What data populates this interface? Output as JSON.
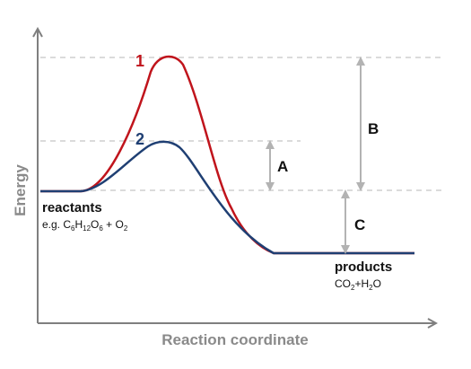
{
  "axes": {
    "y_label": "Energy",
    "x_label": "Reaction coordinate"
  },
  "curves": [
    {
      "label": "1",
      "color": "#c0141c"
    },
    {
      "label": "2",
      "color": "#1f3f73"
    }
  ],
  "gaps": {
    "a": "A",
    "b": "B",
    "c": "C"
  },
  "reactants": {
    "title": "reactants",
    "formula_prefix": "e.g. C",
    "c_sub": "6",
    "h": "H",
    "h_sub": "12",
    "o": "O",
    "o_sub": "6",
    "plus": " + O",
    "o2_sub": "2"
  },
  "products": {
    "title": "products",
    "formula_prefix": "CO",
    "co2_sub": "2",
    "plus_h": "+H",
    "h2_sub": "2",
    "o": "O"
  },
  "colors": {
    "axis": "#7f7f7f",
    "dashed": "#cfcfcf",
    "arrow": "#b3b3b3"
  }
}
